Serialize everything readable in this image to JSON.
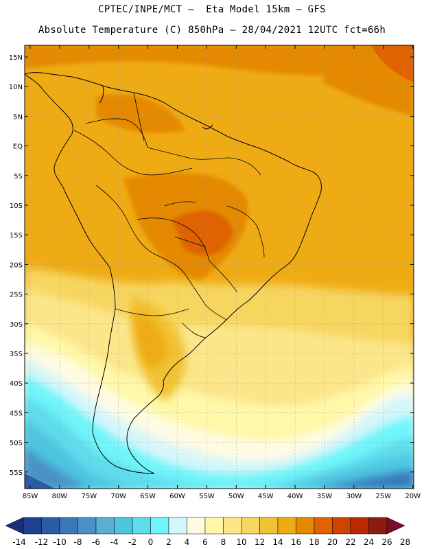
{
  "title": {
    "line1": "CPTEC/INPE/MCT –  Eta Model 15km – GFS",
    "line2": "Absolute Temperature (C) 850hPa – 28/04/2021 12UTC fct=66h"
  },
  "map": {
    "lat_labels": [
      "15N",
      "10N",
      "5N",
      "EQ",
      "5S",
      "10S",
      "15S",
      "20S",
      "25S",
      "30S",
      "35S",
      "40S",
      "45S",
      "50S",
      "55S"
    ],
    "lon_labels": [
      "85W",
      "80W",
      "75W",
      "70W",
      "65W",
      "60W",
      "55W",
      "50W",
      "45W",
      "40W",
      "35W",
      "30W",
      "25W",
      "20W"
    ]
  },
  "colorbar": {
    "labels": [
      "-14",
      "-12",
      "-10",
      "-8",
      "-6",
      "-4",
      "-2",
      "0",
      "2",
      "4",
      "6",
      "8",
      "10",
      "12",
      "14",
      "16",
      "18",
      "20",
      "22",
      "24",
      "26",
      "28"
    ],
    "colors": [
      "#1f3f8f",
      "#2a5ca6",
      "#3a78b8",
      "#4a92c6",
      "#5aaed6",
      "#4ec5e0",
      "#5fdcec",
      "#6ff5fa",
      "#d4f6fb",
      "#fffbe3",
      "#fff8a9",
      "#fbe68a",
      "#f7d660",
      "#f1c236",
      "#efab14",
      "#e58a00",
      "#df6300",
      "#cf4300",
      "#b82a05",
      "#8a1d10"
    ],
    "low_color": "#1b2f78",
    "high_color": "#7a0c2c"
  }
}
